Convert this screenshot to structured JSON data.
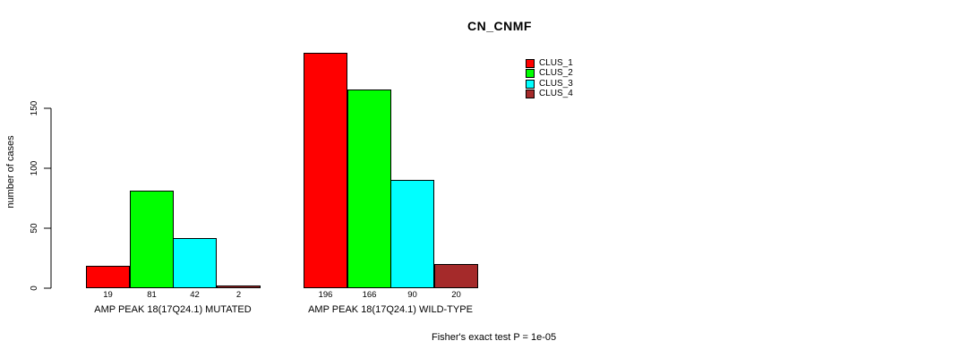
{
  "chart_data": {
    "type": "bar",
    "title": "CN_CNMF",
    "ylabel": "number of cases",
    "yticks": [
      0,
      50,
      100,
      150
    ],
    "ylim": [
      0,
      150
    ],
    "grid": false,
    "legend_position": "top-right",
    "bar_value_labels_shown": true,
    "series": [
      {
        "name": "CLUS_1",
        "color": "#FF0000"
      },
      {
        "name": "CLUS_2",
        "color": "#00FF00"
      },
      {
        "name": "CLUS_3",
        "color": "#00FFFF"
      },
      {
        "name": "CLUS_4",
        "color": "#A52A2A"
      }
    ],
    "groups": [
      {
        "label": "AMP PEAK 18(17Q24.1) MUTATED",
        "values": [
          19,
          81,
          42,
          2
        ]
      },
      {
        "label": "AMP PEAK 18(17Q24.1) WILD-TYPE",
        "values": [
          196,
          166,
          90,
          20
        ]
      }
    ],
    "annotation": "Fisher's exact test P = 1e-05"
  }
}
